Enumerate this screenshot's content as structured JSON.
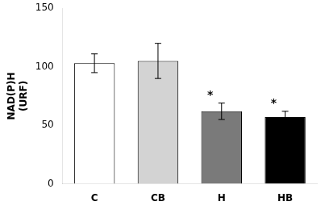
{
  "chart_data": {
    "type": "bar",
    "categories": [
      "C",
      "CB",
      "H",
      "HB"
    ],
    "values": [
      103,
      105,
      62,
      57
    ],
    "errors": [
      8,
      15,
      7,
      5
    ],
    "colors": [
      "#ffffff",
      "#d3d3d3",
      "#7a7a7a",
      "#000000"
    ],
    "ylabel": "NAD(P)H\n(URF)",
    "annotations": [
      {
        "text": "*",
        "category": "H"
      },
      {
        "text": "*",
        "category": "HB"
      }
    ],
    "ylim": [
      0,
      150
    ],
    "yticks": [
      0,
      50,
      100,
      150
    ],
    "grid": false
  }
}
